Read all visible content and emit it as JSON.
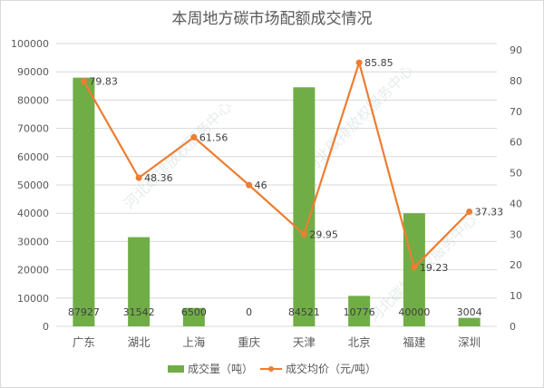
{
  "chart_data": {
    "type": "bar",
    "title": "本周地方碳市场配额成交情况",
    "categories": [
      "广东",
      "湖北",
      "上海",
      "重庆",
      "天津",
      "北京",
      "福建",
      "深圳"
    ],
    "series": [
      {
        "name": "成交量（吨）",
        "type": "bar",
        "axis": "left",
        "color": "#70ad47",
        "values": [
          87927,
          31542,
          6500,
          0,
          84521,
          10776,
          40000,
          3004
        ]
      },
      {
        "name": "成交均价（元/吨）",
        "type": "line",
        "axis": "right",
        "color": "#ed7d31",
        "values": [
          79.83,
          48.36,
          61.56,
          46,
          29.95,
          85.85,
          19.23,
          37.33
        ]
      }
    ],
    "xlabel": "",
    "ylabel": "",
    "ylim": [
      0,
      100000
    ],
    "y2lim": [
      0,
      90
    ],
    "yticks": [
      "0",
      "10000",
      "20000",
      "30000",
      "40000",
      "50000",
      "60000",
      "70000",
      "80000",
      "90000",
      "100000"
    ],
    "y2ticks": [
      "0",
      "10",
      "20",
      "30",
      "40",
      "50",
      "60",
      "70",
      "80",
      "90"
    ],
    "grid": true,
    "legend_position": "bottom"
  },
  "legend": {
    "bar_label": "成交量（吨）",
    "line_label": "成交均价（元/吨）"
  },
  "watermark": {
    "text": "河北碳排放权服务中心",
    "subtext": "Hebei Emission Exchange"
  }
}
